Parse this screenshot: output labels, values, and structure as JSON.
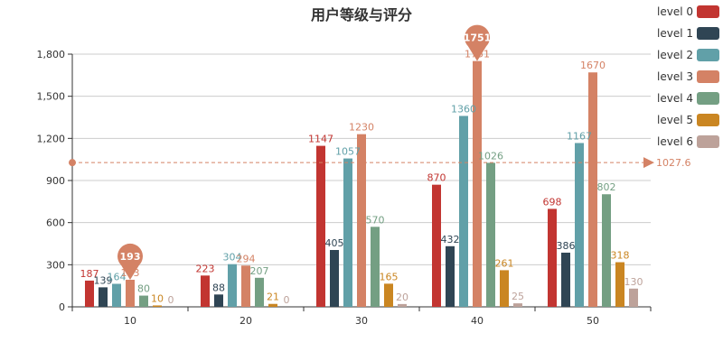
{
  "chart_data": {
    "type": "bar",
    "title": "用户等级与评分",
    "categories": [
      "10",
      "20",
      "30",
      "40",
      "50"
    ],
    "ylim": [
      0,
      1800
    ],
    "yticks": [
      0,
      300,
      600,
      900,
      1200,
      1500,
      1800
    ],
    "ytick_labels": [
      "0",
      "300",
      "600",
      "900",
      "1,200",
      "1,500",
      "1,800"
    ],
    "grid": true,
    "legend_position": "right",
    "series": [
      {
        "name": "level 0",
        "color": "#c23531",
        "values": [
          187,
          223,
          1147,
          870,
          698
        ]
      },
      {
        "name": "level 1",
        "color": "#2f4554",
        "values": [
          139,
          88,
          405,
          432,
          386
        ]
      },
      {
        "name": "level 2",
        "color": "#61a0a8",
        "values": [
          164,
          304,
          1057,
          1360,
          1167
        ]
      },
      {
        "name": "level 3",
        "color": "#d48265",
        "values": [
          193,
          294,
          1230,
          1751,
          1670
        ]
      },
      {
        "name": "level 4",
        "color": "#749f83",
        "values": [
          80,
          207,
          570,
          1026,
          802
        ]
      },
      {
        "name": "level 5",
        "color": "#ca8622",
        "values": [
          10,
          21,
          165,
          261,
          318
        ]
      },
      {
        "name": "level 6",
        "color": "#bda29a",
        "values": [
          0,
          0,
          20,
          25,
          130
        ]
      }
    ],
    "mark_points": [
      {
        "series": 3,
        "category": 0,
        "label": "193"
      },
      {
        "series": 3,
        "category": 3,
        "label": "1751"
      }
    ],
    "mark_line": {
      "series": 3,
      "type": "average",
      "value": 1027.6,
      "label": "1027.6"
    }
  }
}
